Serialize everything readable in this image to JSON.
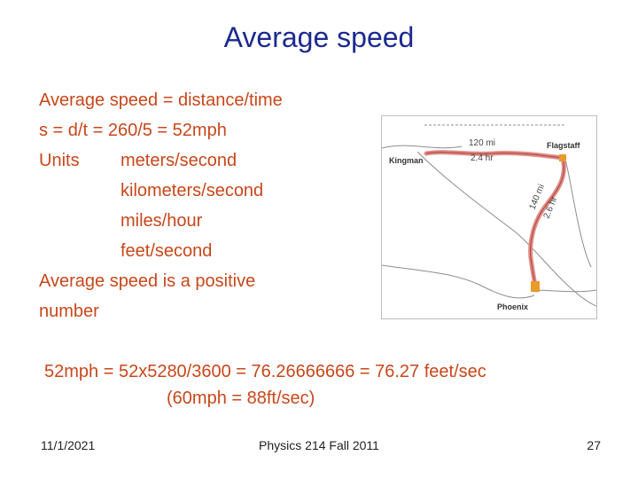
{
  "slide": {
    "title": "Average speed",
    "lines": {
      "l1": "Average speed = distance/time",
      "l2": "s = d/t  =  260/5 = 52mph",
      "units_label": "Units",
      "unit1": "meters/second",
      "unit2": "kilometers/second",
      "unit3": "miles/hour",
      "unit4": "feet/second",
      "l7": "Average speed is a positive",
      "l8": "number"
    },
    "conversion": {
      "line1": "52mph = 52x5280/3600 = 76.26666666 = 76.27 feet/sec",
      "line2": "(60mph = 88ft/sec)"
    }
  },
  "map": {
    "cities": {
      "kingman": "Kingman",
      "flagstaff": "Flagstaff",
      "phoenix": "Phoenix"
    },
    "leg1": {
      "distance": "120 mi",
      "time": "2.4 hr"
    },
    "leg2": {
      "distance": "140 mi",
      "time": "2.6 hr"
    },
    "route_color": "#e28c86",
    "marker_color": "#e89a2c"
  },
  "footer": {
    "date": "11/1/2021",
    "course": "Physics 214 Fall 2011",
    "page": "27"
  }
}
